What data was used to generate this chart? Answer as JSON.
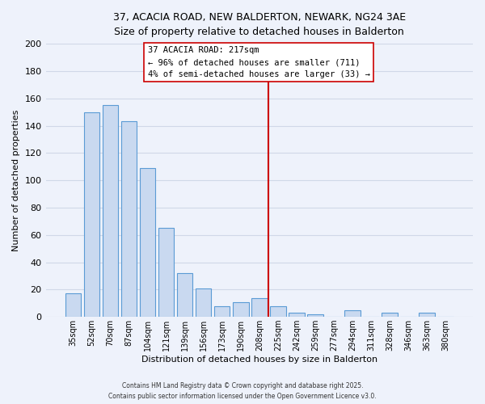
{
  "title_line1": "37, ACACIA ROAD, NEW BALDERTON, NEWARK, NG24 3AE",
  "title_line2": "Size of property relative to detached houses in Balderton",
  "xlabel": "Distribution of detached houses by size in Balderton",
  "ylabel": "Number of detached properties",
  "bar_labels": [
    "35sqm",
    "52sqm",
    "70sqm",
    "87sqm",
    "104sqm",
    "121sqm",
    "139sqm",
    "156sqm",
    "173sqm",
    "190sqm",
    "208sqm",
    "225sqm",
    "242sqm",
    "259sqm",
    "277sqm",
    "294sqm",
    "311sqm",
    "328sqm",
    "346sqm",
    "363sqm",
    "380sqm"
  ],
  "bar_values": [
    17,
    150,
    155,
    143,
    109,
    65,
    32,
    21,
    8,
    11,
    14,
    8,
    3,
    2,
    0,
    5,
    0,
    3,
    0,
    3,
    0
  ],
  "bar_color": "#c9d9f0",
  "bar_edge_color": "#5b9bd5",
  "property_line_x": 10.5,
  "property_line_color": "#cc0000",
  "annotation_title": "37 ACACIA ROAD: 217sqm",
  "annotation_line1": "← 96% of detached houses are smaller (711)",
  "annotation_line2": "4% of semi-detached houses are larger (33) →",
  "annotation_box_facecolor": "#ffffff",
  "annotation_box_edgecolor": "#cc0000",
  "ylim": [
    0,
    200
  ],
  "yticks": [
    0,
    20,
    40,
    60,
    80,
    100,
    120,
    140,
    160,
    180,
    200
  ],
  "footnote_line1": "Contains HM Land Registry data © Crown copyright and database right 2025.",
  "footnote_line2": "Contains public sector information licensed under the Open Government Licence v3.0.",
  "background_color": "#eef2fb",
  "grid_color": "#d0d8e8"
}
